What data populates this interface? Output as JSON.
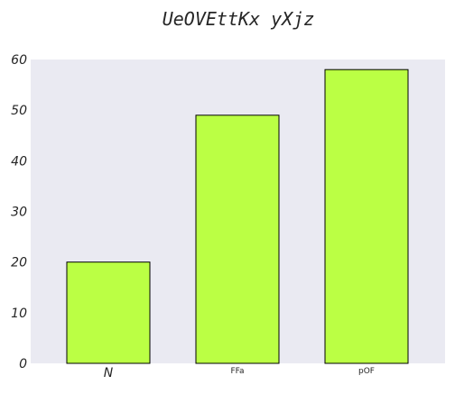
{
  "chart_data": {
    "type": "bar",
    "title": "UeOVEttKx yXjz",
    "xlabel": "",
    "ylabel": "",
    "categories": [
      "N",
      "FFa",
      "pOF"
    ],
    "values": [
      20,
      49,
      58
    ],
    "ylim": [
      0,
      60
    ],
    "yticks": [
      0,
      10,
      20,
      30,
      40,
      50,
      60
    ],
    "grid": false,
    "legend": "none",
    "colors": {
      "bar_fill": "#bbff44",
      "bar_edge": "#000000",
      "plot_background": "#eaeaf2",
      "text": "#262626"
    }
  }
}
